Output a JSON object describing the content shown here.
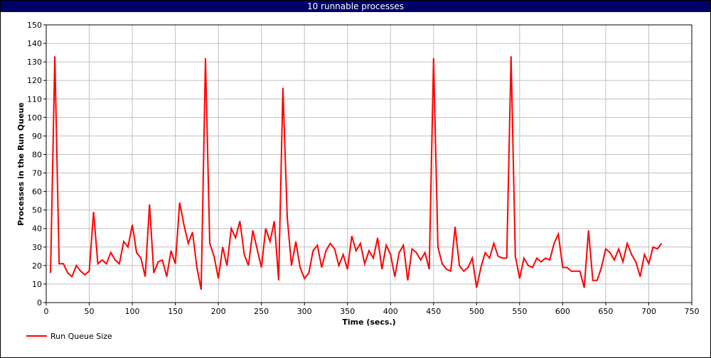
{
  "window": {
    "title": "10 runnable processes"
  },
  "chart_data": {
    "type": "line",
    "title": "10 runnable processes",
    "xlabel": "Time (secs.)",
    "ylabel": "Processes in the Run Queue",
    "xlim": [
      0,
      750
    ],
    "ylim": [
      0,
      150
    ],
    "x_ticks": [
      0,
      50,
      100,
      150,
      200,
      250,
      300,
      350,
      400,
      450,
      500,
      550,
      600,
      650,
      700,
      750
    ],
    "y_ticks": [
      0,
      10,
      20,
      30,
      40,
      50,
      60,
      70,
      80,
      90,
      100,
      110,
      120,
      130,
      140,
      150
    ],
    "grid": true,
    "legend_position": "bottom-left",
    "series": [
      {
        "name": "Run Queue Size",
        "color": "#ff0000",
        "x": [
          5,
          10,
          15,
          20,
          25,
          30,
          35,
          40,
          45,
          50,
          55,
          60,
          65,
          70,
          75,
          80,
          85,
          90,
          95,
          100,
          105,
          110,
          115,
          120,
          125,
          130,
          135,
          140,
          145,
          150,
          155,
          160,
          165,
          170,
          175,
          180,
          185,
          190,
          195,
          200,
          205,
          210,
          215,
          220,
          225,
          230,
          235,
          240,
          245,
          250,
          255,
          260,
          265,
          270,
          275,
          280,
          285,
          290,
          295,
          300,
          305,
          310,
          315,
          320,
          325,
          330,
          335,
          340,
          345,
          350,
          355,
          360,
          365,
          370,
          375,
          380,
          385,
          390,
          395,
          400,
          405,
          410,
          415,
          420,
          425,
          430,
          435,
          440,
          445,
          450,
          455,
          460,
          465,
          470,
          475,
          480,
          485,
          490,
          495,
          500,
          505,
          510,
          515,
          520,
          525,
          530,
          535,
          540,
          545,
          550,
          555,
          560,
          565,
          570,
          575,
          580,
          585,
          590,
          595,
          600,
          605,
          610,
          615,
          620,
          625,
          630,
          635,
          640,
          645,
          650,
          655,
          660,
          665,
          670,
          675,
          680,
          685,
          690,
          695,
          700,
          705,
          710,
          715
        ],
        "y": [
          16,
          133,
          21,
          21,
          16,
          14,
          20,
          17,
          15,
          17,
          49,
          21,
          23,
          21,
          27,
          23,
          21,
          33,
          30,
          42,
          27,
          24,
          14,
          53,
          16,
          22,
          23,
          14,
          28,
          21,
          54,
          42,
          32,
          38,
          19,
          7,
          132,
          32,
          25,
          13,
          30,
          20,
          40,
          35,
          44,
          26,
          20,
          39,
          29,
          19,
          40,
          33,
          44,
          12,
          116,
          46,
          20,
          33,
          19,
          13,
          16,
          28,
          31,
          19,
          28,
          32,
          29,
          20,
          26,
          18,
          36,
          28,
          32,
          21,
          28,
          24,
          35,
          18,
          31,
          26,
          14,
          27,
          31,
          12,
          29,
          27,
          23,
          27,
          18,
          132,
          30,
          21,
          18,
          17,
          41,
          20,
          17,
          19,
          24,
          8,
          19,
          27,
          24,
          32,
          25,
          24,
          24,
          133,
          25,
          13,
          24,
          20,
          19,
          24,
          22,
          24,
          23,
          32,
          37,
          19,
          19,
          17,
          17,
          17,
          8,
          39,
          12,
          12,
          19,
          29,
          27,
          23,
          29,
          22,
          32,
          26,
          22,
          14,
          26,
          21,
          30,
          29,
          32
        ]
      }
    ]
  }
}
